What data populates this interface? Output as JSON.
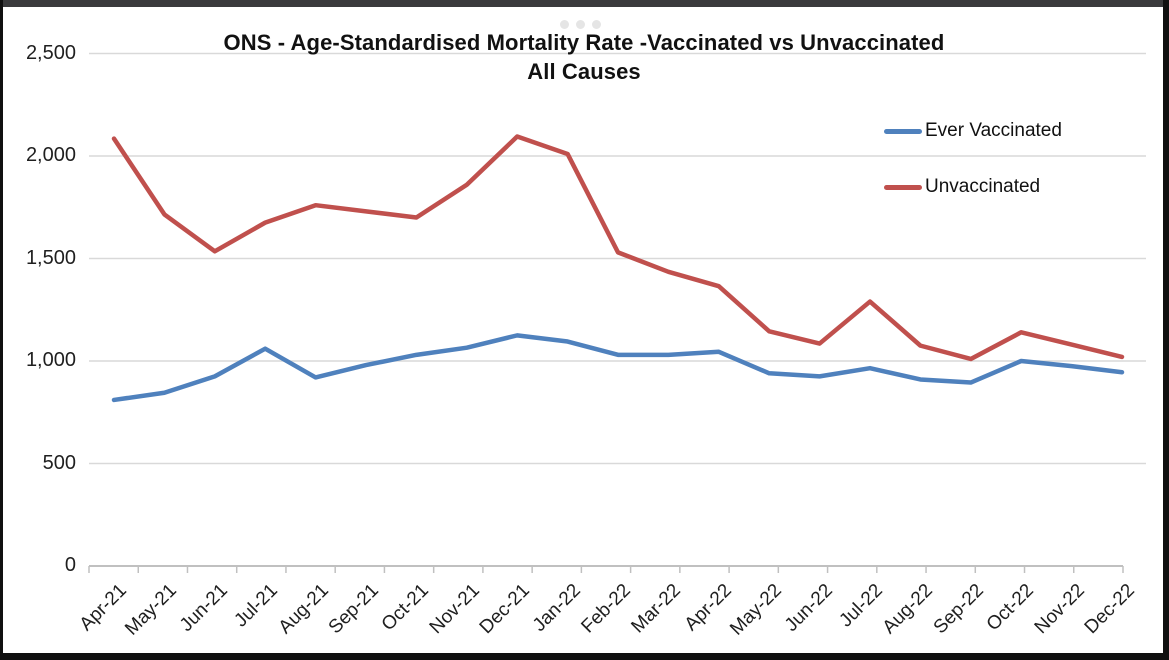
{
  "chart_data": {
    "type": "line",
    "title": "ONS - Age-Standardised Mortality Rate -Vaccinated vs Unvaccinated",
    "subtitle": "All Causes",
    "categories": [
      "Apr-21",
      "May-21",
      "Jun-21",
      "Jul-21",
      "Aug-21",
      "Sep-21",
      "Oct-21",
      "Nov-21",
      "Dec-21",
      "Jan-22",
      "Feb-22",
      "Mar-22",
      "Apr-22",
      "May-22",
      "Jun-22",
      "Jul-22",
      "Aug-22",
      "Sep-22",
      "Oct-22",
      "Nov-22",
      "Dec-22"
    ],
    "series": [
      {
        "name": "Ever Vaccinated",
        "color": "#4F81BD",
        "values": [
          810,
          845,
          925,
          1060,
          920,
          980,
          1030,
          1065,
          1125,
          1095,
          1030,
          1030,
          1045,
          940,
          925,
          965,
          910,
          895,
          1000,
          975,
          945
        ]
      },
      {
        "name": "Unvaccinated",
        "color": "#C0504D",
        "values": [
          2085,
          1715,
          1535,
          1675,
          1760,
          1730,
          1700,
          1860,
          2095,
          2010,
          1530,
          1435,
          1365,
          1145,
          1085,
          1290,
          1075,
          1010,
          1140,
          1080,
          1020
        ]
      }
    ],
    "ylim": [
      0,
      2500
    ],
    "y_tick_values": [
      0,
      500,
      1000,
      1500,
      2000,
      2500
    ],
    "y_ticks": [
      "0",
      "500",
      "1,000",
      "1,500",
      "2,000",
      "2,500"
    ],
    "grid": "horizontal-gridlines",
    "legend_position": "top-right",
    "grid_color": "#d9d9d9",
    "axis_color": "#c0c0c0"
  },
  "overlay": {
    "more_dots_count": "3"
  }
}
